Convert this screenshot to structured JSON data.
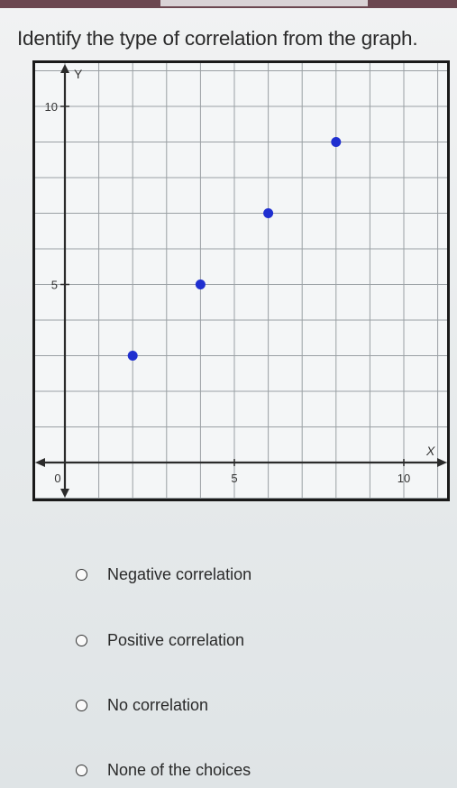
{
  "question": {
    "text": "Identify the type of correlation from the graph."
  },
  "chart_data": {
    "type": "scatter",
    "title": "",
    "xlabel": "X",
    "ylabel": "Y",
    "xlim": [
      -1,
      11
    ],
    "ylim": [
      -1,
      11
    ],
    "grid": true,
    "x_ticks": [
      {
        "value": 0,
        "label": "0"
      },
      {
        "value": 5,
        "label": "5"
      },
      {
        "value": 10,
        "label": "10"
      }
    ],
    "y_ticks": [
      {
        "value": 5,
        "label": "5"
      },
      {
        "value": 10,
        "label": "10"
      }
    ],
    "points": [
      {
        "x": 2,
        "y": 3
      },
      {
        "x": 4,
        "y": 5
      },
      {
        "x": 6,
        "y": 7
      },
      {
        "x": 8,
        "y": 9
      }
    ],
    "point_color": "#1f2fd0"
  },
  "choices": [
    {
      "label": "Negative correlation"
    },
    {
      "label": "Positive correlation"
    },
    {
      "label": "No correlation"
    },
    {
      "label": "None of the choices"
    }
  ]
}
